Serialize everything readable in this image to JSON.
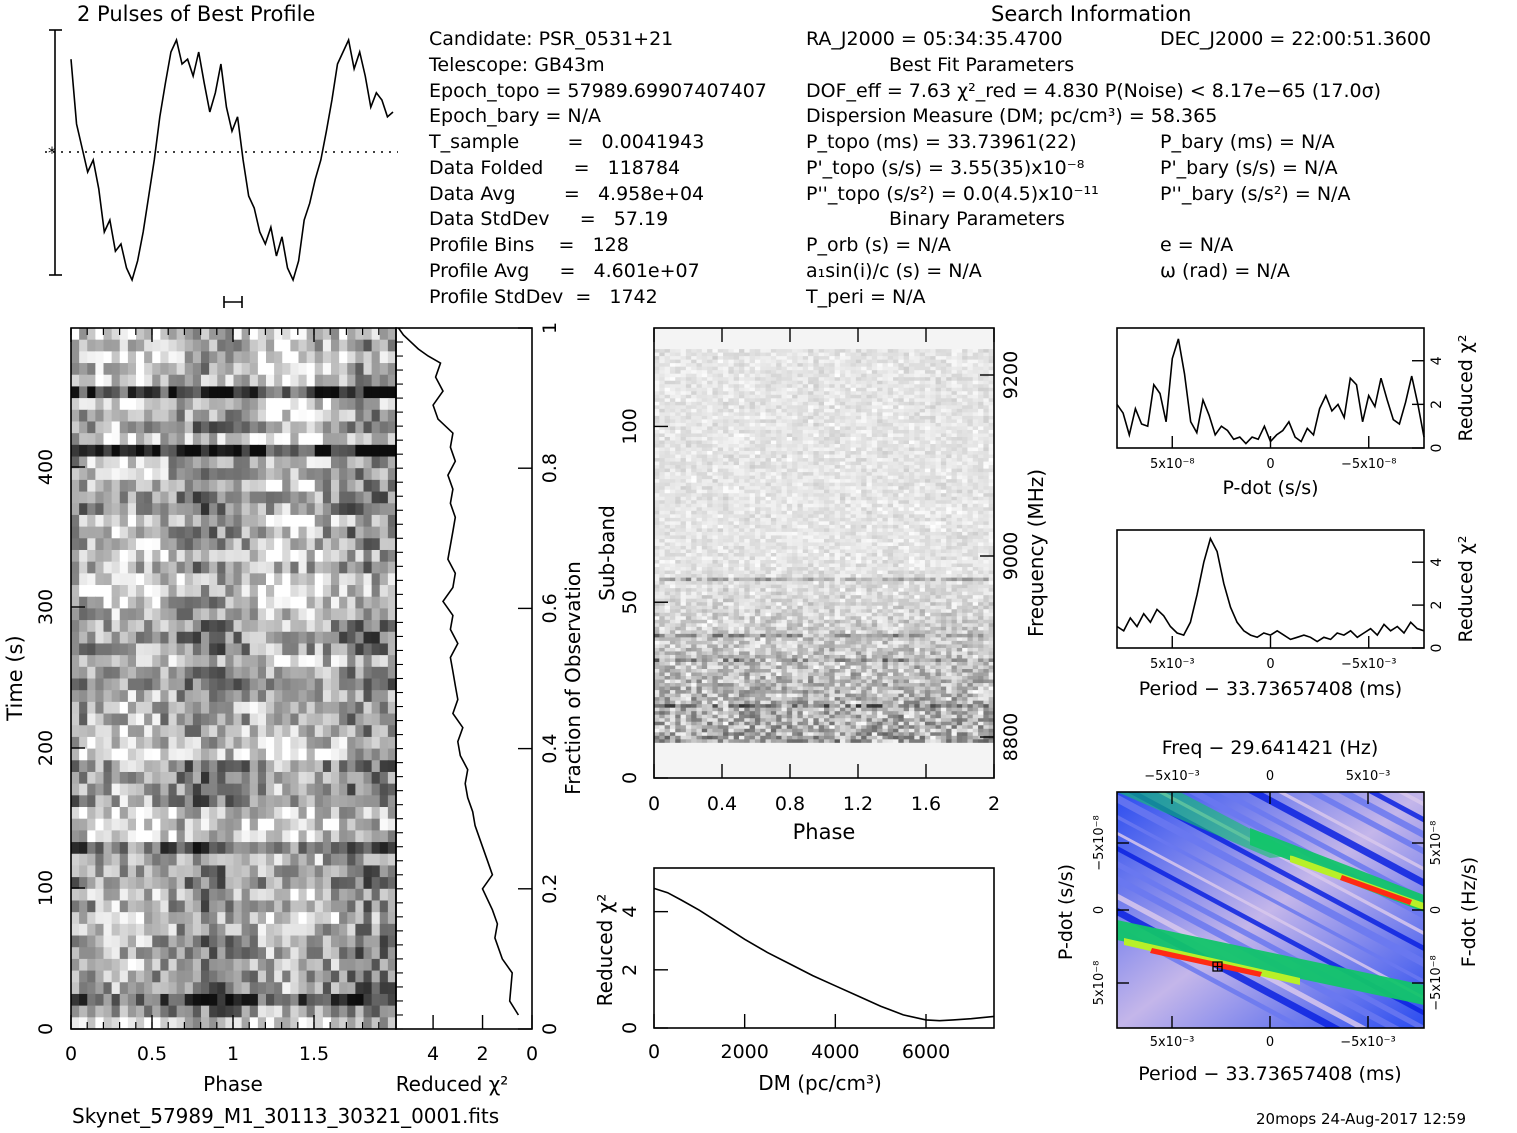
{
  "header": {
    "profile_title": "2 Pulses of Best Profile",
    "search_title": "Search Information",
    "best_fit_title": "Best Fit Parameters",
    "binary_title": "Binary Parameters",
    "footer_file": "Skynet_57989_M1_30113_30321_0001.fits",
    "footer_stamp": "20mops 24-Aug-2017 12:59"
  },
  "info": {
    "candidate": "Candidate:  PSR_0531+21",
    "telescope": "Telescope:  GB43m",
    "epoch_topo": "Epoch_topo = 57989.69907407407",
    "epoch_bary": "Epoch_bary = N/A",
    "t_sample": "T_sample        =   0.0041943",
    "data_folded": "Data Folded     =   118784",
    "data_avg": "Data Avg        =   4.958e+04",
    "data_stddev": "Data StdDev     =   57.19",
    "profile_bins": "Profile Bins    =   128",
    "profile_avg": "Profile Avg     =   4.601e+07",
    "profile_stddev": "Profile StdDev  =   1742"
  },
  "search": {
    "ra": "RA_J2000 = 05:34:35.4700",
    "dec": "DEC_J2000 = 22:00:51.3600",
    "dof_line": "DOF_eff = 7.63  χ²_red = 4.830  P(Noise) < 8.17e−65  (17.0σ)",
    "dm_line": "Dispersion Measure (DM; pc/cm³) = 58.365",
    "p_topo": "P_topo (ms) =  33.73961(22)",
    "pd_topo": "P'_topo (s/s) =  3.55(35)x10⁻⁸",
    "pdd_topo": "P''_topo (s/s²) = 0.0(4.5)x10⁻¹¹",
    "p_bary": "P_bary (ms) = N/A",
    "pd_bary": "P'_bary (s/s) = N/A",
    "pdd_bary": "P''_bary (s/s²) = N/A",
    "p_orb": "P_orb (s) = N/A",
    "a1sini": "a₁sin(i)/c (s) = N/A",
    "t_peri": "T_peri = N/A",
    "ecc": "e = N/A",
    "omega": "ω (rad) = N/A"
  },
  "chart_data": [
    {
      "id": "profile",
      "type": "line",
      "title": "2 Pulses of Best Profile",
      "x": "phase 0-2 (256 samples, 2 pulses)",
      "y_shape": [
        0.92,
        0.65,
        0.55,
        0.45,
        0.5,
        0.38,
        0.2,
        0.25,
        0.12,
        0.15,
        0.05,
        0.0,
        0.08,
        0.2,
        0.35,
        0.5,
        0.68,
        0.82,
        0.95,
        1.0,
        0.9,
        0.92,
        0.85,
        0.95,
        0.82,
        0.7,
        0.78,
        0.9,
        0.72,
        0.62,
        0.68,
        0.5,
        0.35,
        0.3,
        0.2,
        0.15,
        0.22,
        0.1,
        0.18,
        0.05,
        0.0,
        0.08,
        0.25,
        0.32,
        0.42,
        0.5,
        0.62,
        0.75,
        0.9,
        0.95,
        1.0,
        0.88,
        0.95,
        0.85,
        0.72,
        0.78,
        0.75,
        0.68,
        0.7
      ],
      "mean_line": true
    },
    {
      "id": "time_phase",
      "type": "heatmap",
      "xlabel": "Phase",
      "ylabel": "Time (s)",
      "x_ticks": [
        "0",
        "0.5",
        "1",
        "1.5"
      ],
      "y_ticks": [
        "0",
        "100",
        "200",
        "300",
        "400"
      ],
      "xlim": [
        0,
        2
      ],
      "ylim": [
        0,
        495
      ]
    },
    {
      "id": "time_chi2",
      "type": "line",
      "xlabel": "Reduced χ²",
      "ylabel": "Fraction of Observation",
      "x_ticks": [
        "4",
        "2",
        "0"
      ],
      "y_ticks": [
        "0",
        "0.2",
        "0.4",
        "0.6",
        "0.8",
        "1"
      ],
      "xlim": [
        5.5,
        0
      ],
      "ylim": [
        0,
        1
      ],
      "x": [
        0.55,
        0.9,
        0.8,
        1.2,
        1.5,
        1.4,
        1.6,
        2.0,
        1.6,
        1.8,
        2.0,
        2.3,
        2.4,
        2.6,
        2.7,
        2.6,
        2.9,
        3.0,
        2.8,
        3.2,
        3.0,
        3.1,
        3.2,
        3.3,
        3.0,
        3.3,
        3.2,
        3.6,
        3.2,
        3.1,
        3.4,
        3.3,
        3.2,
        3.1,
        3.3,
        3.2,
        3.4,
        3.1,
        3.3,
        3.2,
        3.8,
        4.0,
        3.6,
        3.9,
        3.7,
        4.2,
        4.6,
        5.2,
        5.4
      ],
      "y": [
        0.02,
        0.04,
        0.08,
        0.1,
        0.13,
        0.15,
        0.17,
        0.2,
        0.22,
        0.24,
        0.26,
        0.29,
        0.31,
        0.33,
        0.35,
        0.37,
        0.39,
        0.41,
        0.43,
        0.45,
        0.47,
        0.49,
        0.51,
        0.53,
        0.55,
        0.57,
        0.59,
        0.61,
        0.63,
        0.65,
        0.67,
        0.69,
        0.71,
        0.73,
        0.75,
        0.77,
        0.79,
        0.81,
        0.83,
        0.85,
        0.87,
        0.89,
        0.91,
        0.93,
        0.95,
        0.96,
        0.97,
        0.99,
        1.0
      ]
    },
    {
      "id": "subband_phase",
      "type": "heatmap",
      "xlabel": "Phase",
      "ylabel": "Sub-band",
      "y2label": "Frequency (MHz)",
      "x_ticks": [
        "0",
        "0.4",
        "0.8",
        "1.2",
        "1.6",
        "2"
      ],
      "y_ticks": [
        "0",
        "50",
        "100"
      ],
      "y2_ticks": [
        "8800",
        "9000",
        "9200"
      ],
      "xlim": [
        0,
        2
      ],
      "ylim": [
        0,
        128
      ]
    },
    {
      "id": "dm_chi2",
      "type": "line",
      "xlabel": "DM (pc/cm³)",
      "ylabel": "Reduced χ²",
      "x_ticks": [
        "0",
        "2000",
        "4000",
        "6000"
      ],
      "y_ticks": [
        "0",
        "2",
        "4"
      ],
      "xlim": [
        0,
        7500
      ],
      "ylim": [
        0,
        5.5
      ],
      "x": [
        0,
        300,
        600,
        1000,
        1500,
        2000,
        2500,
        3000,
        3500,
        4000,
        4500,
        5000,
        5500,
        6000,
        6300,
        6600,
        7000,
        7500
      ],
      "y": [
        4.8,
        4.65,
        4.4,
        4.05,
        3.55,
        3.05,
        2.6,
        2.2,
        1.8,
        1.45,
        1.1,
        0.75,
        0.45,
        0.28,
        0.25,
        0.28,
        0.32,
        0.4
      ]
    },
    {
      "id": "pdot_chi2",
      "type": "line",
      "xlabel": "P-dot (s/s)",
      "ylabel": "Reduced χ²",
      "x_ticks": [
        "5x10⁻⁸",
        "0",
        "−5x10⁻⁸"
      ],
      "y_ticks": [
        "0",
        "2",
        "4"
      ],
      "ylim": [
        0,
        5.5
      ],
      "values": [
        2.0,
        1.6,
        0.6,
        1.8,
        1.1,
        1.0,
        2.9,
        2.5,
        1.2,
        4.1,
        5.0,
        3.4,
        1.2,
        0.7,
        2.2,
        1.5,
        0.6,
        1.0,
        0.8,
        0.4,
        0.5,
        0.2,
        0.5,
        0.4,
        1.0,
        0.3,
        0.6,
        0.8,
        1.2,
        0.5,
        0.3,
        0.9,
        0.6,
        1.8,
        2.4,
        1.7,
        2.0,
        1.4,
        3.2,
        2.9,
        1.2,
        2.4,
        1.9,
        3.2,
        2.2,
        1.3,
        1.1,
        2.1,
        3.3,
        2.0,
        0.5
      ]
    },
    {
      "id": "period_chi2",
      "type": "line",
      "xlabel": "Period − 33.73657408 (ms)",
      "ylabel": "Reduced χ²",
      "x_ticks": [
        "5x10⁻³",
        "0",
        "−5x10⁻³"
      ],
      "y_ticks": [
        "0",
        "2",
        "4"
      ],
      "ylim": [
        0,
        5.5
      ],
      "values": [
        1.0,
        0.8,
        1.4,
        1.0,
        1.6,
        1.2,
        1.8,
        1.5,
        1.0,
        0.7,
        0.6,
        1.2,
        2.5,
        4.0,
        5.1,
        4.5,
        3.0,
        1.9,
        1.2,
        0.8,
        0.6,
        0.5,
        0.7,
        0.6,
        0.8,
        0.6,
        0.4,
        0.5,
        0.6,
        0.5,
        0.3,
        0.5,
        0.4,
        0.7,
        0.6,
        0.8,
        0.5,
        0.7,
        0.9,
        0.6,
        1.1,
        0.8,
        1.0,
        0.7,
        1.2,
        0.9,
        0.8
      ]
    },
    {
      "id": "ppdot_plane",
      "type": "heatmap",
      "title": "Freq − 29.641421 (Hz)",
      "xlabel": "Period − 33.73657408 (ms)",
      "ylabel": "P-dot (s/s)",
      "y2label": "F-dot (Hz/s)",
      "x_ticks": [
        "5x10⁻³",
        "0",
        "−5x10⁻³"
      ],
      "top_ticks": [
        "−5x10⁻³",
        "0",
        "5x10⁻³"
      ],
      "y_ticks": [
        "−5x10⁻⁸",
        "0",
        "5x10⁻⁸"
      ],
      "y2_ticks": [
        "5x10⁻⁸",
        "0",
        "−5x10⁻⁸"
      ],
      "colors": [
        "#d8c8ec",
        "#6a78f0",
        "#0b22e0",
        "#12c46a",
        "#b8f028",
        "#ff2a14"
      ]
    }
  ]
}
